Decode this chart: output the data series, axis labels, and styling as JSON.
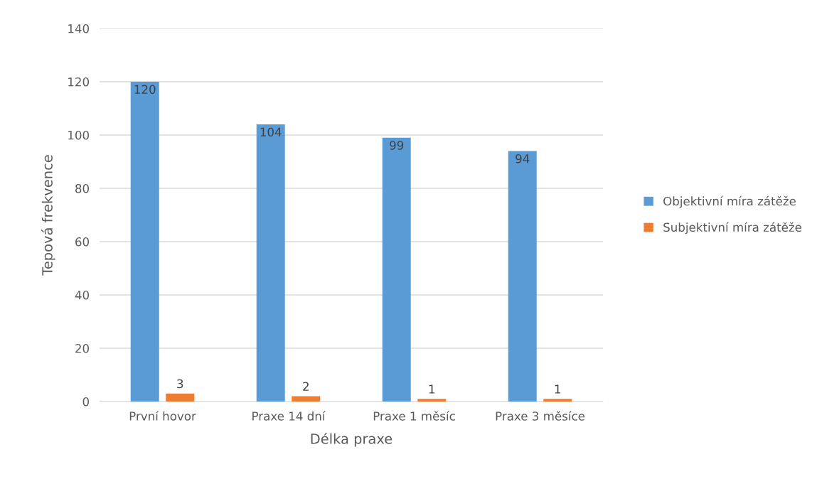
{
  "chart_data": {
    "type": "bar",
    "xlabel": "Délka praxe",
    "ylabel": "Tepová frekvence",
    "categories": [
      "První hovor",
      "Praxe 14 dní",
      "Praxe 1 měsíc",
      "Praxe 3 měsíce"
    ],
    "series": [
      {
        "name": "Objektivní míra zátěže",
        "color": "#5b9bd5",
        "values": [
          120,
          104,
          99,
          94
        ]
      },
      {
        "name": "Subjektivní míra zátěže",
        "color": "#ed7d31",
        "values": [
          3,
          2,
          1,
          1
        ]
      }
    ],
    "ylim": [
      0,
      140
    ],
    "yticks": [
      0,
      20,
      40,
      60,
      80,
      100,
      120,
      140
    ],
    "grid": "y",
    "legend": "right",
    "data_labels": true
  }
}
